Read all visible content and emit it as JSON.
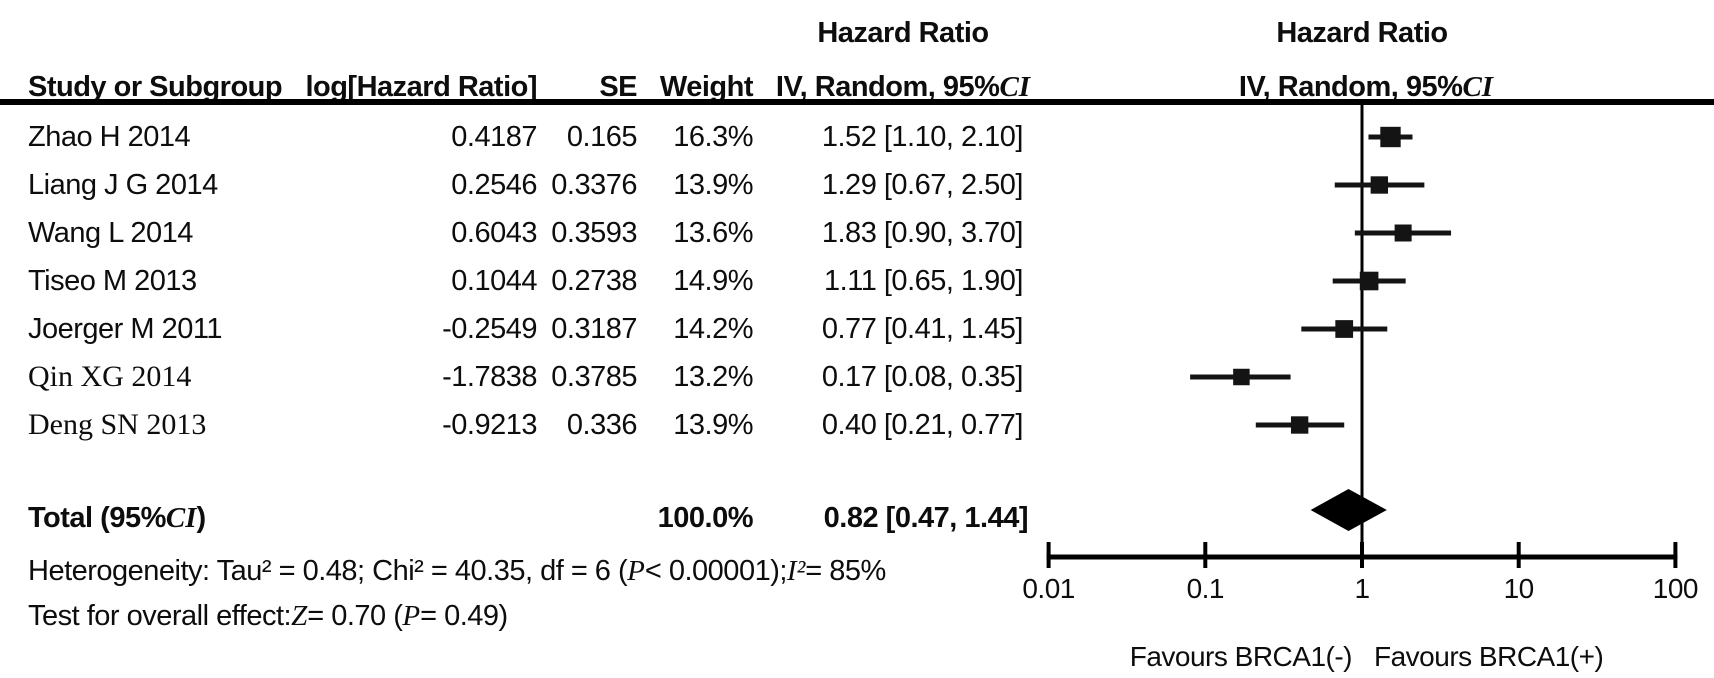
{
  "headers": {
    "effect_title": "Hazard Ratio",
    "study": "Study or Subgroup",
    "log_hr": "log[Hazard Ratio]",
    "se": "SE",
    "weight": "Weight",
    "ci_segments": [
      {
        "t": "IV, Random, 95% ",
        "si": false
      },
      {
        "t": "CI",
        "si": true
      }
    ]
  },
  "rows": [
    {
      "study": "Zhao H 2014",
      "serif": false,
      "log_hr": "0.4187",
      "se": "0.165",
      "weight": "16.3%",
      "ci_text": "1.52 [1.10, 2.10]",
      "hr": 1.52,
      "lo": 1.1,
      "hi": 2.1,
      "weight_pct": 16.3
    },
    {
      "study": "Liang J G 2014",
      "serif": false,
      "log_hr": "0.2546",
      "se": "0.3376",
      "weight": "13.9%",
      "ci_text": "1.29 [0.67, 2.50]",
      "hr": 1.29,
      "lo": 0.67,
      "hi": 2.5,
      "weight_pct": 13.9
    },
    {
      "study": "Wang L 2014",
      "serif": false,
      "log_hr": "0.6043",
      "se": "0.3593",
      "weight": "13.6%",
      "ci_text": "1.83 [0.90, 3.70]",
      "hr": 1.83,
      "lo": 0.9,
      "hi": 3.7,
      "weight_pct": 13.6
    },
    {
      "study": "Tiseo M 2013",
      "serif": false,
      "log_hr": "0.1044",
      "se": "0.2738",
      "weight": "14.9%",
      "ci_text": "1.11 [0.65, 1.90]",
      "hr": 1.11,
      "lo": 0.65,
      "hi": 1.9,
      "weight_pct": 14.9
    },
    {
      "study": "Joerger M 2011",
      "serif": false,
      "log_hr": "-0.2549",
      "se": "0.3187",
      "weight": "14.2%",
      "ci_text": "0.77 [0.41, 1.45]",
      "hr": 0.77,
      "lo": 0.41,
      "hi": 1.45,
      "weight_pct": 14.2
    },
    {
      "study": "Qin XG 2014",
      "serif": true,
      "log_hr": "-1.7838",
      "se": "0.3785",
      "weight": "13.2%",
      "ci_text": "0.17 [0.08, 0.35]",
      "hr": 0.17,
      "lo": 0.08,
      "hi": 0.35,
      "weight_pct": 13.2
    },
    {
      "study": "Deng SN 2013",
      "serif": true,
      "log_hr": "-0.9213",
      "se": "0.336",
      "weight": "13.9%",
      "ci_text": "0.40 [0.21, 0.77]",
      "hr": 0.4,
      "lo": 0.21,
      "hi": 0.77,
      "weight_pct": 13.9
    }
  ],
  "total": {
    "label_segments": [
      {
        "t": "Total (95%",
        "si": false
      },
      {
        "t": "CI",
        "si": true
      },
      {
        "t": ")",
        "si": false
      }
    ],
    "weight": "100.0%",
    "ci_text": "0.82 [0.47, 1.44]",
    "hr": 0.82,
    "lo": 0.47,
    "hi": 1.44
  },
  "footnotes": {
    "heterogeneity_segments": [
      {
        "t": "Heterogeneity: Tau² = 0.48; Chi² = 40.35, df = 6 (",
        "si": false
      },
      {
        "t": "P",
        "si": true
      },
      {
        "t": " < 0.00001); ",
        "si": false
      },
      {
        "t": "I²",
        "si": true
      },
      {
        "t": " = 85%",
        "si": false
      }
    ],
    "overall_effect_segments": [
      {
        "t": "Test for overall effect: ",
        "si": false
      },
      {
        "t": "Z",
        "si": true
      },
      {
        "t": " = 0.70 (",
        "si": false
      },
      {
        "t": "P",
        "si": true
      },
      {
        "t": " = 0.49)",
        "si": false
      }
    ]
  },
  "plot": {
    "tick_labels": [
      "0.01",
      "0.1",
      "1",
      "10",
      "100"
    ],
    "favours_left": "Favours BRCA1(-)",
    "favours_right": "Favours BRCA1(+)",
    "ink_color": "#141414"
  },
  "chart_data": {
    "type": "scatter",
    "variant": "forest-plot-meta-analysis",
    "title": "Hazard Ratio",
    "xlabel": "IV, Random, 95% CI",
    "x_scale": "log10",
    "xlim": [
      0.01,
      100
    ],
    "x_ticks": [
      0.01,
      0.1,
      1,
      10,
      100
    ],
    "no_effect_line": 1,
    "grid": false,
    "categories": [
      "Zhao H 2014",
      "Liang J G 2014",
      "Wang L 2014",
      "Tiseo M 2013",
      "Joerger M 2011",
      "Qin XG 2014",
      "Deng SN 2013"
    ],
    "series": [
      {
        "name": "Hazard Ratio (point estimate)",
        "values": [
          1.52,
          1.29,
          1.83,
          1.11,
          0.77,
          0.17,
          0.4
        ]
      },
      {
        "name": "95% CI lower",
        "values": [
          1.1,
          0.67,
          0.9,
          0.65,
          0.41,
          0.08,
          0.21
        ]
      },
      {
        "name": "95% CI upper",
        "values": [
          2.1,
          2.5,
          3.7,
          1.9,
          1.45,
          0.35,
          0.77
        ]
      },
      {
        "name": "Weight %",
        "values": [
          16.3,
          13.9,
          13.6,
          14.9,
          14.2,
          13.2,
          13.9
        ]
      }
    ],
    "summary_diamond": {
      "estimate": 0.82,
      "lo": 0.47,
      "hi": 1.44,
      "weight": 100.0
    },
    "annotations": [
      "Favours BRCA1(-)",
      "Favours BRCA1(+)"
    ]
  }
}
